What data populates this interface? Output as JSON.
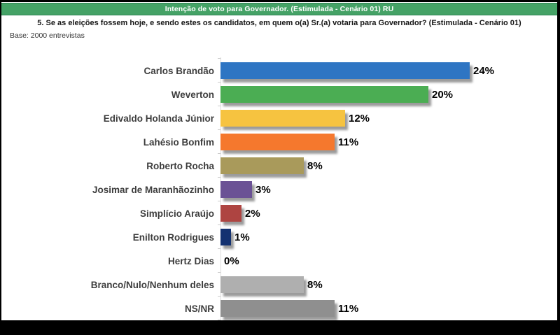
{
  "frame": {
    "border_color": "#000000",
    "background_color": "#ffffff"
  },
  "header": {
    "title": "Intenção de voto para Governador. (Estimulada - Cenário 01) RU",
    "bg_color": "#45a266",
    "text_color": "#ffffff"
  },
  "question": "5. Se as eleições fossem hoje, e sendo estes os candidatos, em quem o(a) Sr.(a) votaria para Governador? (Estimulada - Cenário 01)",
  "base_note": "Base: 2000 entrevistas",
  "chart_data": {
    "type": "bar",
    "orientation": "horizontal",
    "title": "Intenção de voto para Governador. (Estimulada - Cenário 01) RU",
    "categories": [
      "Carlos Brandão",
      "Weverton",
      "Edivaldo Holanda Júnior",
      "Lahésio Bonfim",
      "Roberto Rocha",
      "Josimar de Maranhãozinho",
      "Simplício Araújo",
      "Enilton Rodrigues",
      "Hertz Dias",
      "Branco/Nulo/Nenhum deles",
      "NS/NR"
    ],
    "values": [
      24,
      20,
      12,
      11,
      8,
      3,
      2,
      1,
      0,
      8,
      11
    ],
    "value_labels": [
      "24%",
      "20%",
      "12%",
      "11%",
      "8%",
      "3%",
      "2%",
      "1%",
      "0%",
      "8%",
      "11%"
    ],
    "bar_colors": [
      "#2e75c3",
      "#4bad53",
      "#f6c340",
      "#f5782d",
      "#a99a5b",
      "#6b5295",
      "#ae4441",
      "#143271",
      "#000000",
      "#afafaf",
      "#8f8f8f"
    ],
    "unit": "%",
    "xlim": [
      0,
      24
    ],
    "grid": false,
    "legend": false,
    "value_label_position": "end-of-bar"
  }
}
